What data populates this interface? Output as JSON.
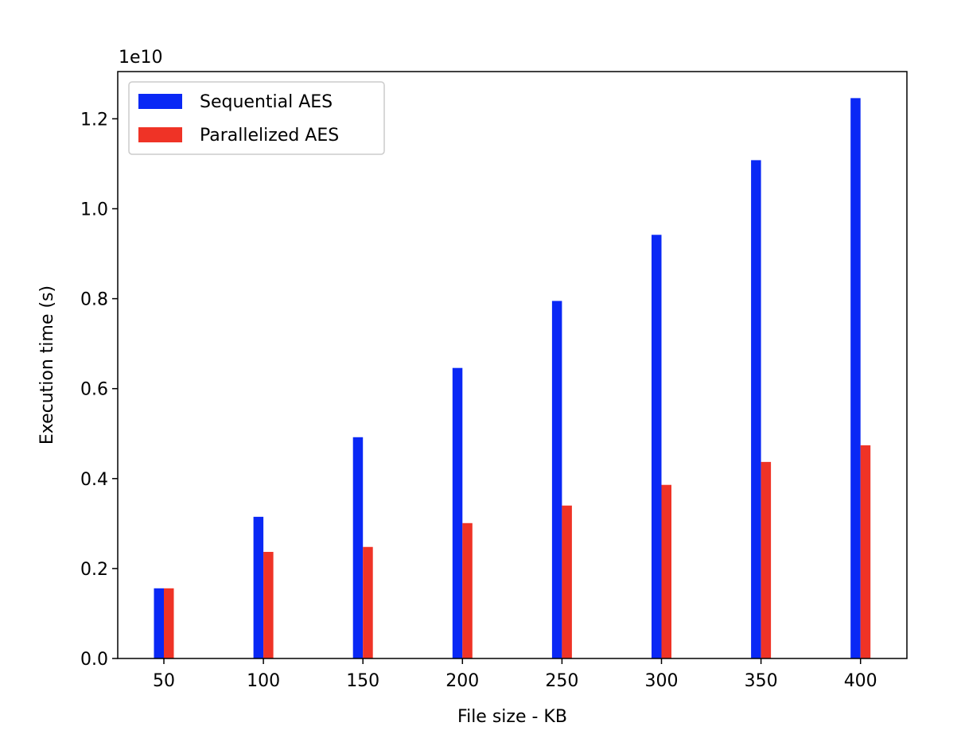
{
  "chart_data": {
    "type": "bar",
    "title": "",
    "xlabel": "File size - KB",
    "ylabel": "Execution time (s)",
    "y_offset_label": "1e10",
    "y_scale": 10000000000,
    "categories": [
      "50",
      "100",
      "150",
      "200",
      "250",
      "300",
      "350",
      "400"
    ],
    "series": [
      {
        "name": "Sequential AES",
        "color": "#0a28f5",
        "values": [
          1560000000,
          3150000000,
          4920000000,
          6460000000,
          7950000000,
          9420000000,
          11080000000,
          12460000000
        ]
      },
      {
        "name": "Parallelized AES",
        "color": "#ef3326",
        "values": [
          1560000000,
          2370000000,
          2480000000,
          3010000000,
          3400000000,
          3860000000,
          4370000000,
          4740000000
        ]
      }
    ],
    "ylim": [
      0,
      13050000000
    ],
    "yticks": [
      0.0,
      0.2,
      0.4,
      0.6,
      0.8,
      1.0,
      1.2
    ],
    "ytick_labels": [
      "0.0",
      "0.2",
      "0.4",
      "0.6",
      "0.8",
      "1.0",
      "1.2"
    ],
    "grid": false,
    "legend_position": "top-left"
  }
}
